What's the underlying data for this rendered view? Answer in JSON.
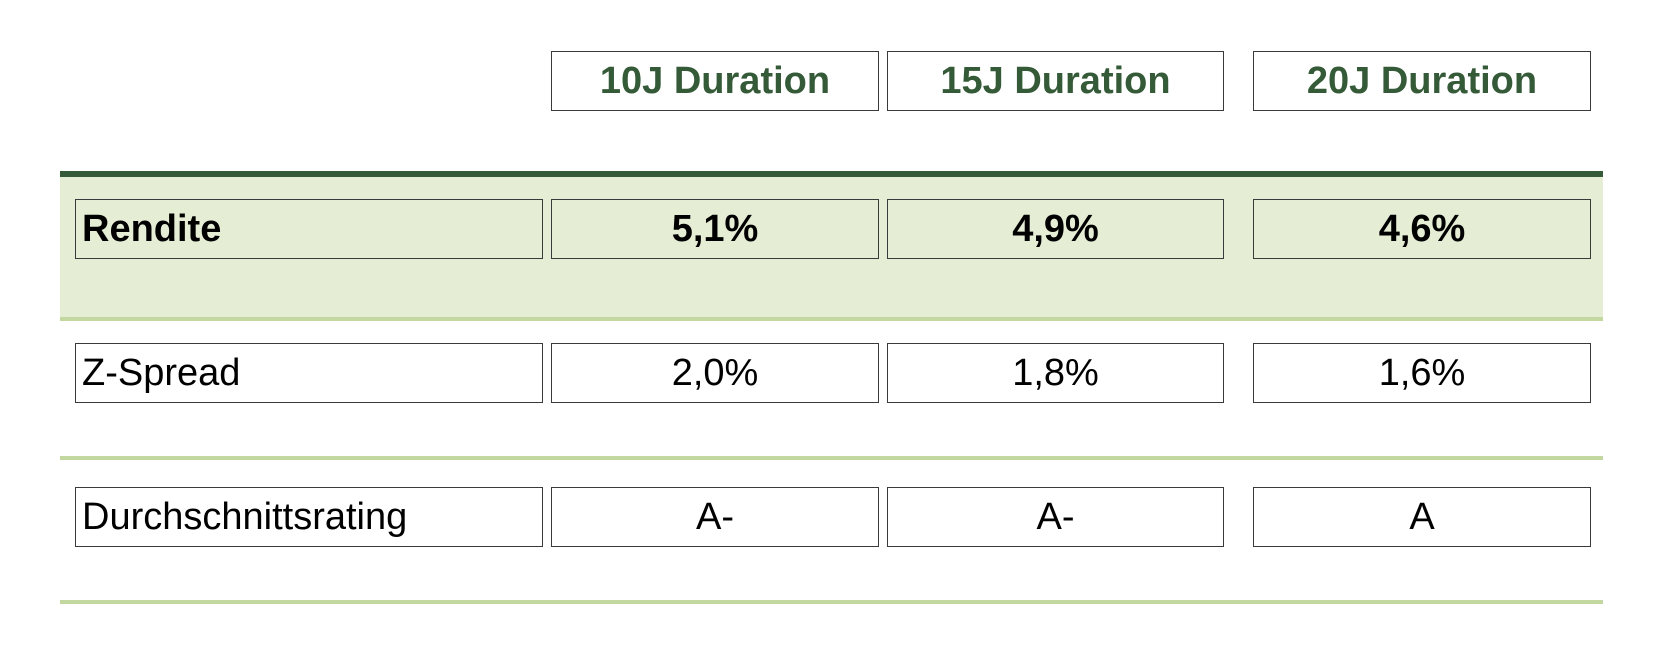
{
  "colors": {
    "header_text": "#355a38",
    "highlight_band": "#e5eed5",
    "dark_rule": "#355a38",
    "light_rule": "#c3d8a0"
  },
  "columns": [
    "10J Duration",
    "15J Duration",
    "20J Duration"
  ],
  "rows": [
    {
      "label": "Rendite",
      "values": [
        "5,1%",
        "4,9%",
        "4,6%"
      ],
      "emphasis": "bold"
    },
    {
      "label": "Z-Spread",
      "values": [
        "2,0%",
        "1,8%",
        "1,6%"
      ],
      "emphasis": "normal"
    },
    {
      "label": "Durchschnittsrating",
      "values": [
        "A-",
        "A-",
        "A"
      ],
      "emphasis": "normal"
    }
  ]
}
